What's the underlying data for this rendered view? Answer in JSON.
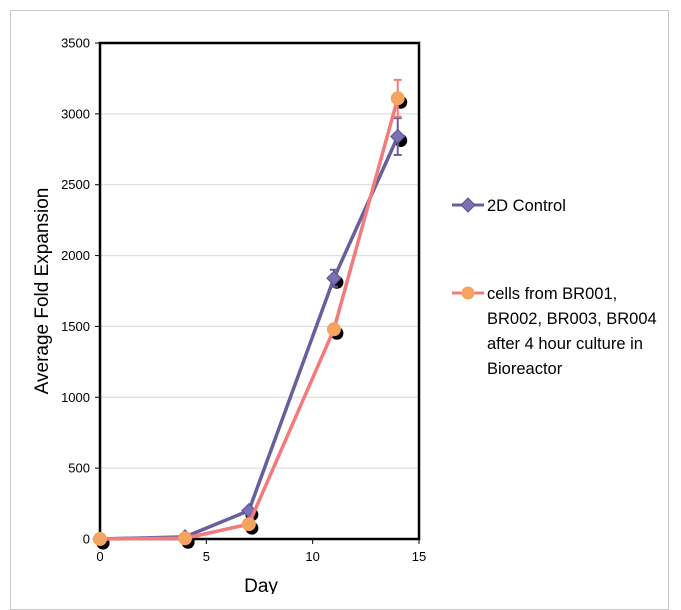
{
  "chart_data": {
    "type": "line",
    "title": "",
    "xlabel": "Day",
    "ylabel": "Average Fold Expansion",
    "xlim": [
      0,
      15
    ],
    "ylim": [
      0,
      3500
    ],
    "xticks": [
      0,
      5,
      10,
      15
    ],
    "yticks": [
      0,
      500,
      1000,
      1500,
      2000,
      2500,
      3000,
      3500
    ],
    "grid": "horizontal",
    "legend_position": "right",
    "series": [
      {
        "name": "2D Control",
        "color": "#6a5f9e",
        "marker": "diamond",
        "x": [
          0,
          4,
          7,
          11,
          14
        ],
        "y": [
          0,
          15,
          200,
          1840,
          2840
        ],
        "error": [
          0,
          5,
          10,
          60,
          130
        ]
      },
      {
        "name": "cells from BR001, BR002, BR003, BR004 after 4 hour culture in Bioreactor",
        "color": "#f37b7b",
        "marker": "circle",
        "marker_color": "#f4a45e",
        "x": [
          0,
          4,
          7,
          11,
          14
        ],
        "y": [
          0,
          5,
          105,
          1480,
          3110
        ],
        "error": [
          0,
          3,
          10,
          30,
          130
        ]
      }
    ],
    "legend": {
      "item1": "2D Control",
      "item2_lines": [
        "cells from BR001,",
        "BR002, BR003, BR004",
        "after 4 hour culture in",
        "Bioreactor"
      ]
    }
  }
}
